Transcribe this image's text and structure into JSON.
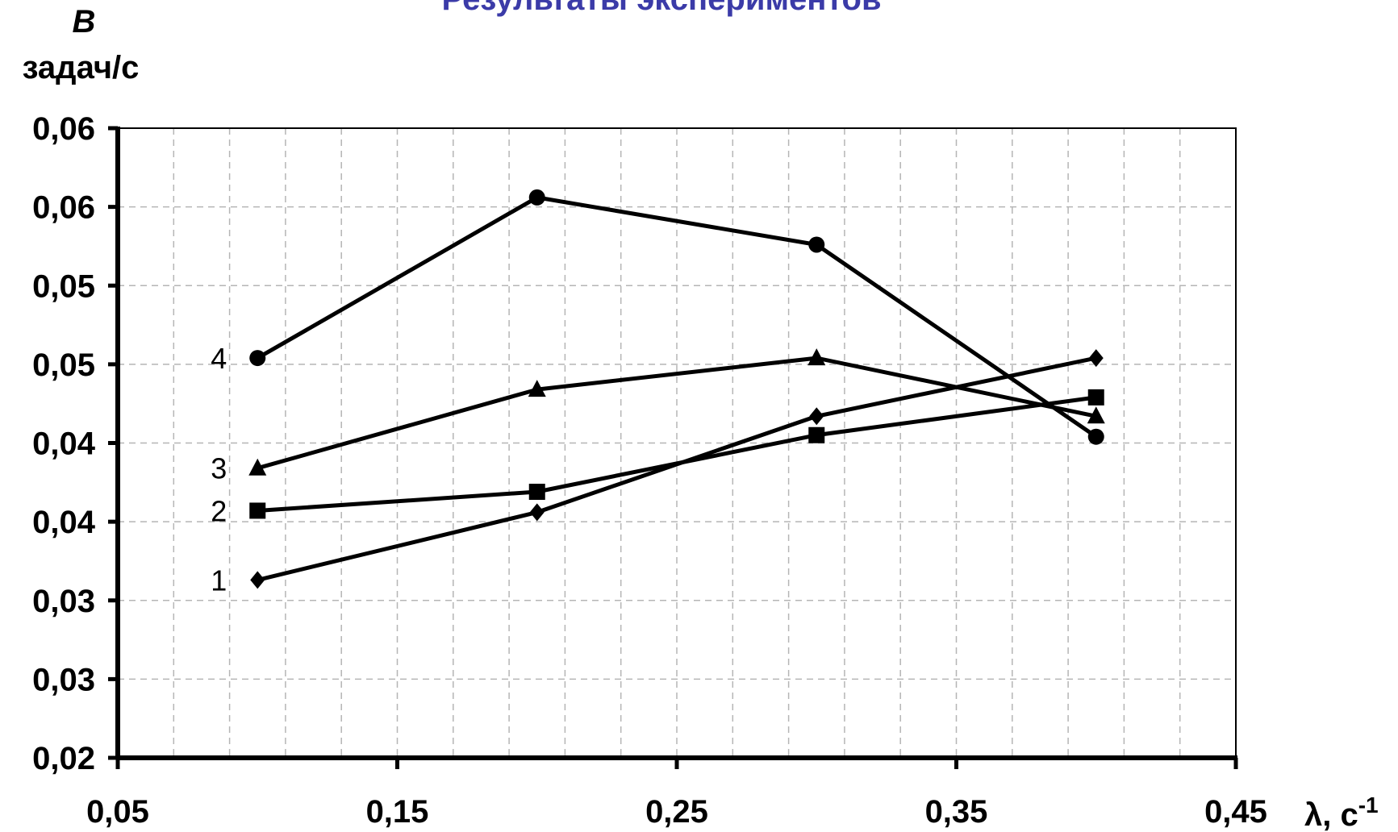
{
  "chart_data": {
    "type": "line",
    "title": "Результаты экспериментов",
    "ylabel_symbol": "B",
    "ylabel_unit": "задач/с",
    "xlabel": "λ, c",
    "xlabel_superscript": "-1",
    "x_ticks": [
      "0,05",
      "0,15",
      "0,25",
      "0,35",
      "0,45"
    ],
    "y_ticks": [
      "0,02",
      "0,03",
      "0,03",
      "0,04",
      "0,04",
      "0,05",
      "0,05",
      "0,06",
      "0,06"
    ],
    "xlim": [
      0.05,
      0.45
    ],
    "ylim": [
      0.02,
      0.06
    ],
    "grid": true,
    "series": [
      {
        "name": "1",
        "marker": "diamond",
        "x": [
          0.1,
          0.2,
          0.3,
          0.4
        ],
        "y": [
          0.0313,
          0.0356,
          0.0417,
          0.0454
        ]
      },
      {
        "name": "2",
        "marker": "square",
        "x": [
          0.1,
          0.2,
          0.3,
          0.4
        ],
        "y": [
          0.0357,
          0.0369,
          0.0405,
          0.0429
        ]
      },
      {
        "name": "3",
        "marker": "triangle",
        "x": [
          0.1,
          0.2,
          0.3,
          0.4
        ],
        "y": [
          0.0384,
          0.0434,
          0.0454,
          0.0417
        ]
      },
      {
        "name": "4",
        "marker": "circle",
        "x": [
          0.1,
          0.2,
          0.3,
          0.4
        ],
        "y": [
          0.0454,
          0.0556,
          0.0526,
          0.0404
        ]
      }
    ]
  }
}
